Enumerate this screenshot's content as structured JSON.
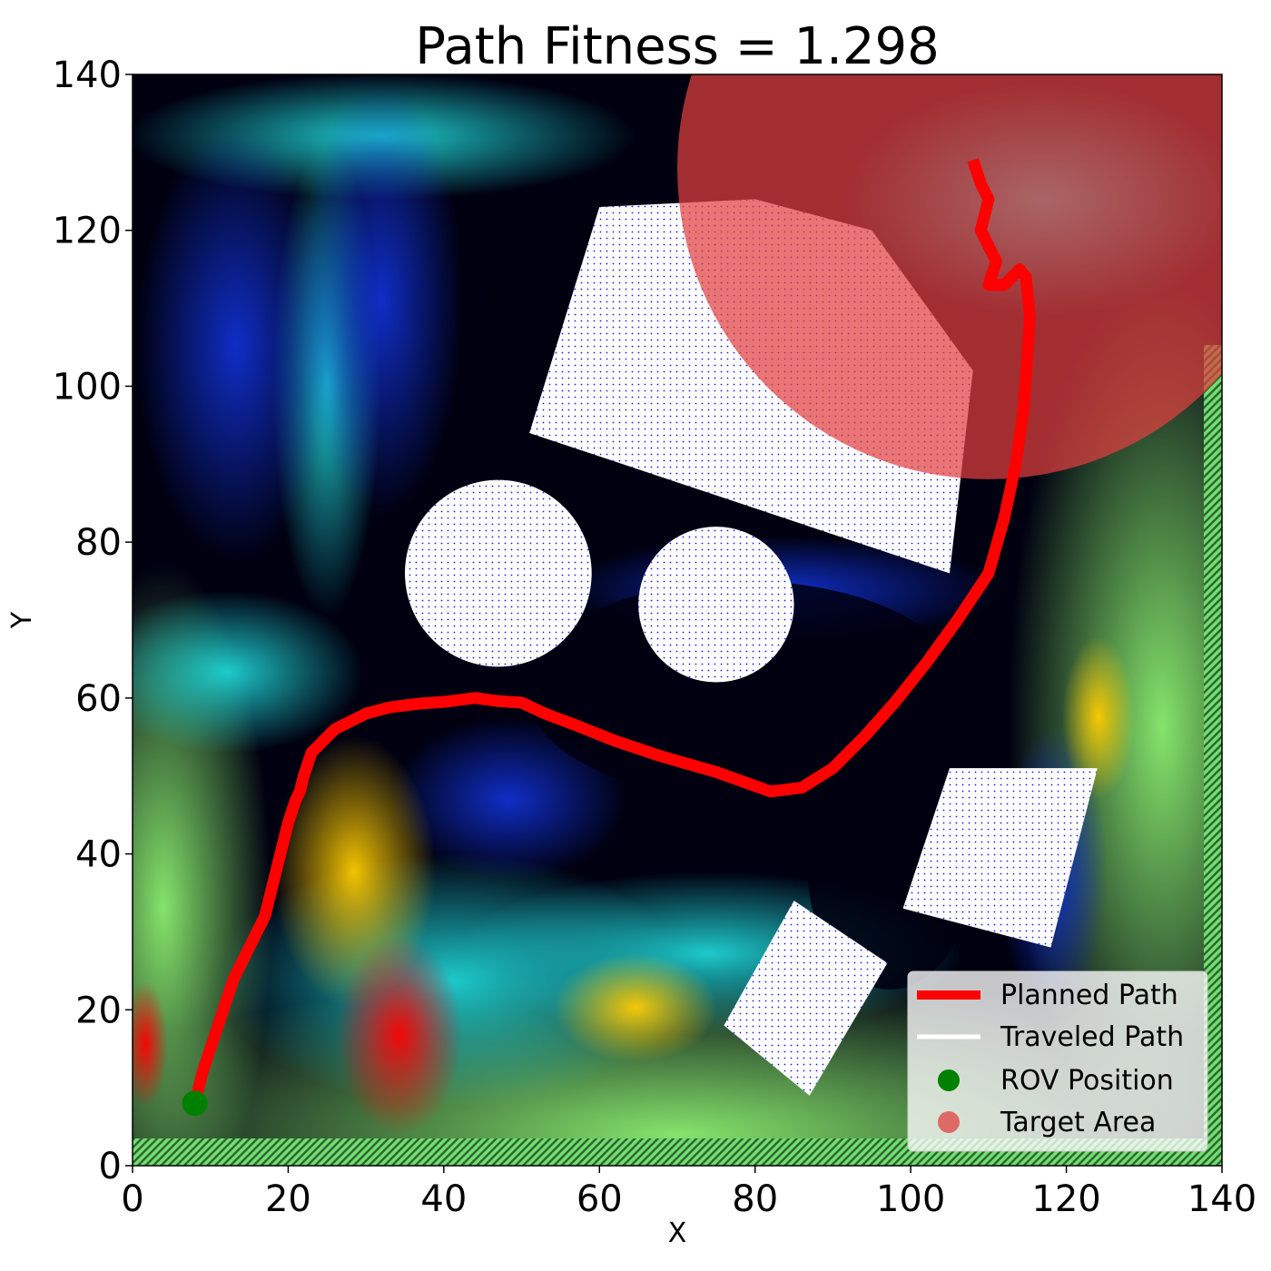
{
  "chart_data": {
    "type": "scatter",
    "title": "Path Fitness = 1.298",
    "xlabel": "X",
    "ylabel": "Y",
    "xlim": [
      0,
      140
    ],
    "ylim": [
      0,
      140
    ],
    "xticks": [
      "0",
      "20",
      "40",
      "60",
      "80",
      "100",
      "120",
      "140"
    ],
    "yticks": [
      "0",
      "20",
      "40",
      "60",
      "80",
      "100",
      "120",
      "140"
    ],
    "grid": false,
    "legend_position": "lower-right",
    "background": "ocean current speed field (colormap: jet) with quiver arrows",
    "obstacles": [
      {
        "shape": "circle",
        "center": [
          47,
          76
        ],
        "radius": 12
      },
      {
        "shape": "circle",
        "center": [
          75,
          72
        ],
        "radius": 10
      },
      {
        "shape": "polygon",
        "points": [
          [
            60,
            123
          ],
          [
            51,
            94
          ],
          [
            105,
            76
          ],
          [
            108,
            102
          ],
          [
            95,
            120
          ],
          [
            80,
            124
          ]
        ]
      },
      {
        "shape": "polygon",
        "points": [
          [
            105,
            51
          ],
          [
            124,
            51
          ],
          [
            118,
            28
          ],
          [
            99,
            33
          ]
        ]
      },
      {
        "shape": "polygon",
        "points": [
          [
            85,
            34
          ],
          [
            97,
            26
          ],
          [
            87,
            9
          ],
          [
            76,
            18
          ]
        ]
      }
    ],
    "series": [
      {
        "name": "Planned Path",
        "type": "line",
        "color": "#ff0000",
        "x": [
          8,
          9,
          11,
          13,
          15,
          17,
          18,
          19,
          20,
          21,
          21.5,
          22,
          23,
          26,
          30,
          33,
          37,
          40,
          44,
          47,
          50,
          53,
          57,
          62,
          68,
          75,
          82,
          86,
          90,
          94,
          98,
          102,
          106,
          110,
          112,
          113.5,
          114.5,
          115,
          115.3,
          114.8,
          114,
          112,
          110,
          111,
          109,
          110,
          109,
          108
        ],
        "y": [
          8,
          12,
          18,
          24,
          28,
          32,
          36,
          40,
          44,
          47,
          48,
          50,
          53,
          56,
          58,
          58.8,
          59.3,
          59.5,
          60,
          59.6,
          59.4,
          58,
          56.5,
          54.5,
          52.5,
          50.5,
          48,
          48.5,
          51,
          55,
          59.5,
          64.5,
          70,
          76,
          83,
          90,
          97,
          104,
          109,
          114,
          115,
          113,
          113,
          116,
          120,
          124,
          126,
          129
        ]
      },
      {
        "name": "Traveled Path",
        "type": "line",
        "color": "#ffffff",
        "x": [],
        "y": []
      },
      {
        "name": "ROV Position",
        "type": "scatter",
        "color": "#008000",
        "x": [
          8
        ],
        "y": [
          8
        ]
      },
      {
        "name": "Target Area",
        "type": "circle",
        "color": "#e04040",
        "center": [
          110,
          128
        ],
        "radius": 40
      }
    ]
  }
}
